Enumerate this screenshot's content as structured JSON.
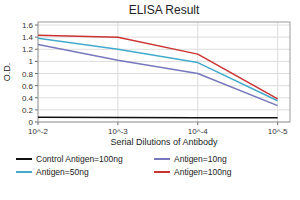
{
  "chart_data": {
    "type": "line",
    "title": "ELISA Result",
    "x_label": "Serial Dilutions of Antibody",
    "y_label": "O.D.",
    "x": [
      0.01,
      0.001,
      0.0001,
      1e-05
    ],
    "xlim": [
      0.01,
      7e-06
    ],
    "xticks": [
      {
        "value": 0.01,
        "label": "10^-2"
      },
      {
        "value": 0.001,
        "label": "10^-3"
      },
      {
        "value": 0.0001,
        "label": "10^-4"
      },
      {
        "value": 1e-05,
        "label": "10^-5"
      }
    ],
    "ylim": [
      0,
      1.65
    ],
    "yticks": [
      0,
      0.2,
      0.4,
      0.6,
      0.8,
      1,
      1.2,
      1.4,
      1.6
    ],
    "log": "x",
    "grid": true,
    "legend": "bottom",
    "series": [
      {
        "name": "Control Antigen=100ng",
        "color": "#111111",
        "values": [
          0.08,
          0.075,
          0.07,
          0.07
        ]
      },
      {
        "name": "Antigen=10ng",
        "color": "#7777BB",
        "values": [
          1.28,
          1.02,
          0.8,
          0.27
        ]
      },
      {
        "name": "Antigen=50ng",
        "color": "#44AACC",
        "values": [
          1.38,
          1.2,
          0.98,
          0.35
        ]
      },
      {
        "name": "Antigen=100ng",
        "color": "#CC3333",
        "values": [
          1.43,
          1.4,
          1.12,
          0.38
        ]
      }
    ]
  }
}
